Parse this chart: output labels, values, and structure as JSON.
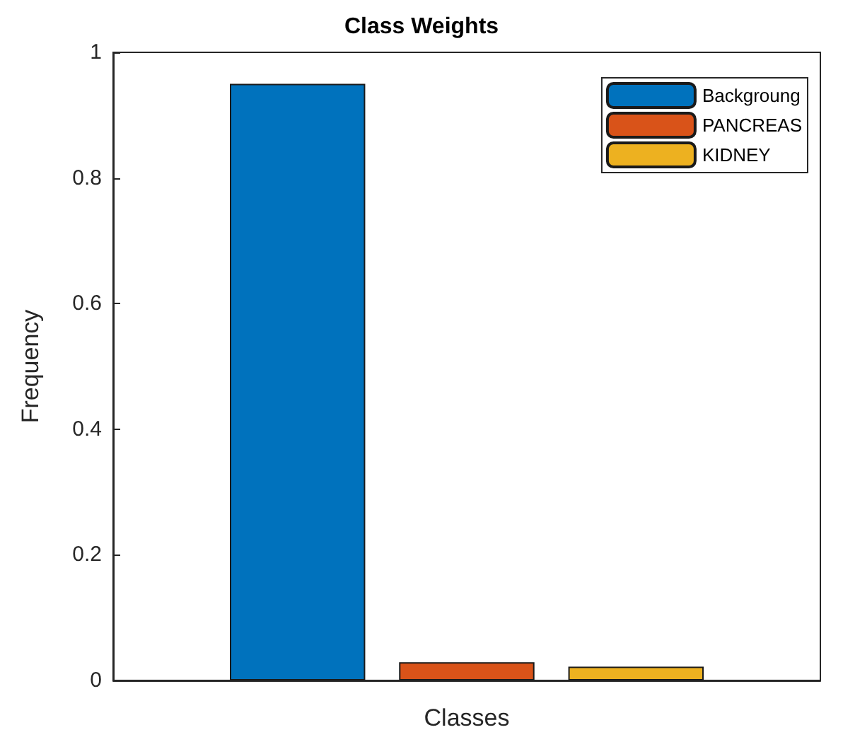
{
  "chart_data": {
    "type": "bar",
    "title": "Class Weights",
    "xlabel": "Classes",
    "ylabel": "Frequency",
    "categories": [
      null
    ],
    "series": [
      {
        "name": "Backgroung",
        "color": "#0072bd",
        "values": [
          0.95
        ]
      },
      {
        "name": "PANCREAS",
        "color": "#d95319",
        "values": [
          0.029
        ]
      },
      {
        "name": "KIDNEY",
        "color": "#edb120",
        "values": [
          0.022
        ]
      }
    ],
    "ylim": [
      0,
      1
    ],
    "yticks": [
      0,
      0.2,
      0.4,
      0.6,
      0.8,
      1
    ],
    "grid": false,
    "legend": "top right"
  }
}
